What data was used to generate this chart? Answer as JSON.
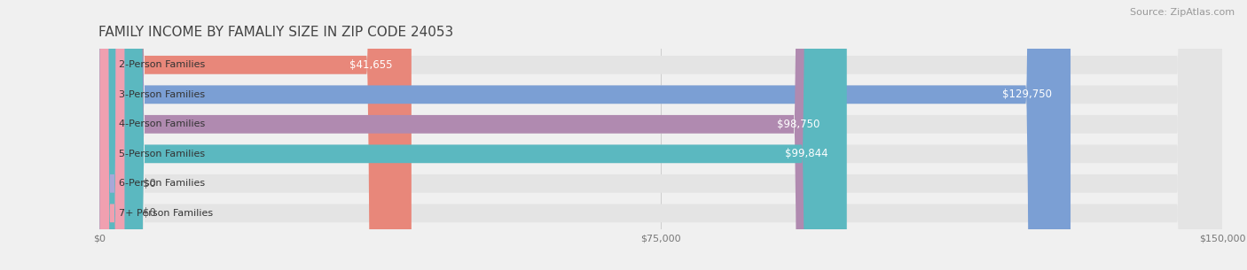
{
  "title": "FAMILY INCOME BY FAMALIY SIZE IN ZIP CODE 24053",
  "source": "Source: ZipAtlas.com",
  "categories": [
    "2-Person Families",
    "3-Person Families",
    "4-Person Families",
    "5-Person Families",
    "6-Person Families",
    "7+ Person Families"
  ],
  "values": [
    41655,
    129750,
    98750,
    99844,
    0,
    0
  ],
  "bar_colors": [
    "#E8877A",
    "#7B9FD4",
    "#B08AB0",
    "#5BB8C0",
    "#A8A8D8",
    "#F0A0B0"
  ],
  "xmax": 150000,
  "xticks": [
    0,
    75000,
    150000
  ],
  "xticklabels": [
    "$0",
    "$75,000",
    "$150,000"
  ],
  "background_color": "#f0f0f0",
  "bar_bg_color": "#e4e4e4",
  "bar_height": 0.62,
  "title_fontsize": 11,
  "source_fontsize": 8,
  "value_fontsize": 8.5,
  "cat_fontsize": 8.0,
  "value_labels": [
    "$41,655",
    "$129,750",
    "$98,750",
    "$99,844",
    "$0",
    "$0"
  ]
}
